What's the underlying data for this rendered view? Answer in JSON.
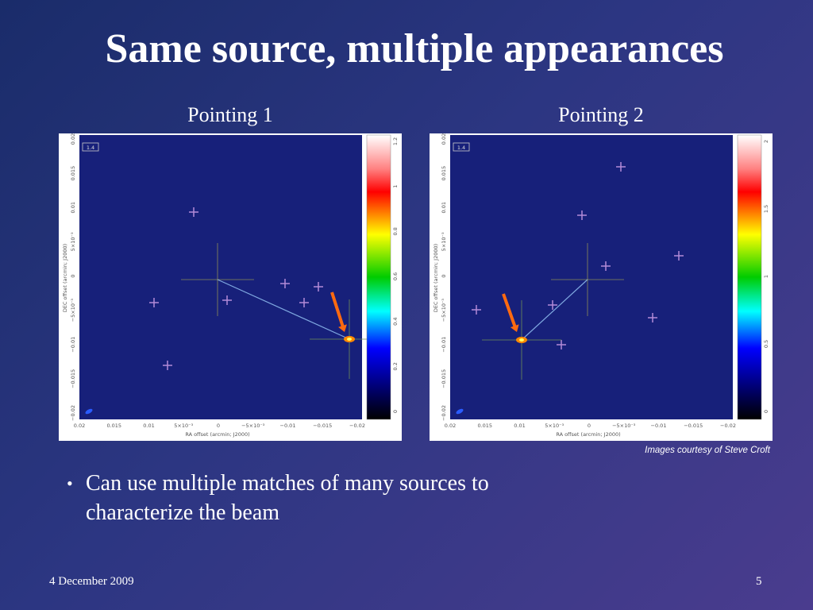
{
  "slide": {
    "title": "Same source, multiple appearances",
    "panels": [
      {
        "heading": "Pointing 1",
        "badge": "1.4",
        "x_ticks": [
          "0.02",
          "0.015",
          "0.01",
          "5×10⁻³",
          "0",
          "−5×10⁻³",
          "−0.01",
          "−0.015",
          "−0.02"
        ],
        "y_ticks": [
          "0.02",
          "0.015",
          "0.01",
          "5×10⁻³",
          "0",
          "−5×10⁻³",
          "−0.01",
          "−0.015",
          "−0.02"
        ],
        "colorbar_ticks": [
          "1.2",
          "1",
          "0.8",
          "0.6",
          "0.4",
          "0.2",
          "0"
        ],
        "x_title": "RA offset (arcmin; J2000)",
        "y_title": "DEC offset (arcmin; J2000)"
      },
      {
        "heading": "Pointing 2",
        "badge": "1.4",
        "x_ticks": [
          "0.02",
          "0.015",
          "0.01",
          "5×10⁻³",
          "0",
          "−5×10⁻³",
          "−0.01",
          "−0.015",
          "−0.02"
        ],
        "y_ticks": [
          "0.02",
          "0.015",
          "0.01",
          "5×10⁻³",
          "0",
          "−5×10⁻³",
          "−0.01",
          "−0.015",
          "−0.02"
        ],
        "colorbar_ticks": [
          "2",
          "1.5",
          "1",
          "0.5",
          "0"
        ],
        "x_title": "RA offset (arcmin; J2000)",
        "y_title": "DEC offset (arcmin; J2000)"
      }
    ],
    "credit": "Images courtesy of Steve Croft",
    "bullets": [
      "Can use multiple matches of many sources to characterize the beam"
    ],
    "footer": {
      "date": "4 December 2009",
      "page": "5"
    }
  }
}
